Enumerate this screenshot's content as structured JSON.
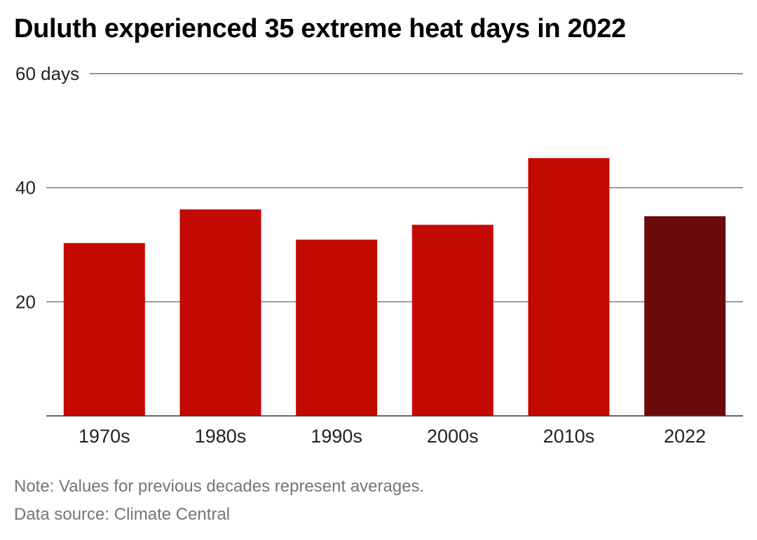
{
  "title": "Duluth experienced 35 extreme heat days in 2022",
  "note": "Note: Values for previous decades represent averages.",
  "source": "Data source: Climate Central",
  "colors": {
    "decade_bar": "#c30a02",
    "highlight_bar": "#6b0a0a",
    "gridline": "#555555",
    "axis_text": "#222222",
    "note_text": "#757575"
  },
  "chart_data": {
    "type": "bar",
    "categories": [
      "1970s",
      "1980s",
      "1990s",
      "2000s",
      "2010s",
      "2022"
    ],
    "values": [
      30.3,
      36.2,
      30.9,
      33.5,
      45.2,
      35
    ],
    "highlight_category": "2022",
    "ylim": [
      0,
      60
    ],
    "yticks": [
      20,
      40,
      60
    ],
    "ytick_labels": [
      "20",
      "40",
      "60 days"
    ],
    "grid": true,
    "legend": "none",
    "xlabel": "",
    "ylabel": ""
  }
}
